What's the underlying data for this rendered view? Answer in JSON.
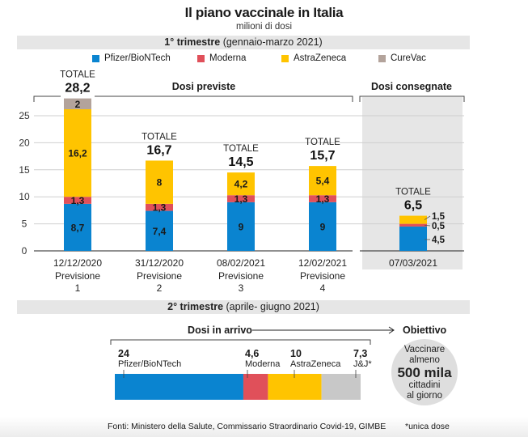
{
  "header": {
    "title": "Il piano vaccinale in Italia",
    "subtitle": "milioni di dosi"
  },
  "q1_band": {
    "bold": "1° trimestre",
    "rest": " (gennaio-marzo 2021)"
  },
  "q2_band": {
    "bold": "2° trimestre",
    "rest": " (aprile- giugno 2021)"
  },
  "legend": [
    {
      "label": "Pfizer/BioNTech",
      "color": "#0a84d0"
    },
    {
      "label": "Moderna",
      "color": "#e0505a"
    },
    {
      "label": "AstraZeneca",
      "color": "#ffc400"
    },
    {
      "label": "CureVac",
      "color": "#b3a39b"
    }
  ],
  "section_labels": {
    "previste": "Dosi previste",
    "consegnate": "Dosi consegnate",
    "in_arrivo": "Dosi in arrivo",
    "obiettivo": "Obiettivo"
  },
  "total_label": "TOTALE",
  "chart_data": [
    {
      "type": "bar",
      "stacked": true,
      "title": "1° trimestre (gennaio-marzo 2021)",
      "ylabel": "milioni di dosi",
      "ylim": [
        0,
        28
      ],
      "yticks": [
        0,
        5,
        10,
        15,
        20,
        25
      ],
      "grid": true,
      "legend": "top",
      "categories": [
        {
          "date": "12/12/2020",
          "label": "Previsione",
          "num": "1",
          "group": "Dosi previste",
          "total": "28,2"
        },
        {
          "date": "31/12/2020",
          "label": "Previsione",
          "num": "2",
          "group": "Dosi previste",
          "total": "16,7"
        },
        {
          "date": "08/02/2021",
          "label": "Previsione",
          "num": "3",
          "group": "Dosi previste",
          "total": "14,5"
        },
        {
          "date": "12/02/2021",
          "label": "Previsione",
          "num": "4",
          "group": "Dosi previste",
          "total": "15,7"
        },
        {
          "date": "07/03/2021",
          "label": "",
          "num": "",
          "group": "Dosi consegnate",
          "total": "6,5"
        }
      ],
      "series": [
        {
          "name": "Pfizer/BioNTech",
          "color": "#0a84d0",
          "values": [
            8.7,
            7.4,
            9,
            9,
            4.5
          ],
          "labels": [
            "8,7",
            "7,4",
            "9",
            "9",
            "4,5"
          ]
        },
        {
          "name": "Moderna",
          "color": "#e0505a",
          "values": [
            1.3,
            1.3,
            1.3,
            1.3,
            0.5
          ],
          "labels": [
            "1,3",
            "1,3",
            "1,3",
            "1,3",
            "0,5"
          ]
        },
        {
          "name": "AstraZeneca",
          "color": "#ffc400",
          "values": [
            16.2,
            8,
            4.2,
            5.4,
            1.5
          ],
          "labels": [
            "16,2",
            "8",
            "4,2",
            "5,4",
            "1,5"
          ]
        },
        {
          "name": "CureVac",
          "color": "#b3a39b",
          "values": [
            2,
            0,
            0,
            0,
            0
          ],
          "labels": [
            "2",
            "",
            "",
            "",
            ""
          ]
        }
      ]
    },
    {
      "type": "bar",
      "stacked": true,
      "orientation": "horizontal",
      "title": "2° trimestre (aprile- giugno 2021) — Dosi in arrivo",
      "series": [
        {
          "name": "Pfizer/BioNTech",
          "color": "#0a84d0",
          "value": 24,
          "label": "24"
        },
        {
          "name": "Moderna",
          "color": "#e0505a",
          "value": 4.6,
          "label": "4,6"
        },
        {
          "name": "AstraZeneca",
          "color": "#ffc400",
          "value": 10,
          "label": "10"
        },
        {
          "name": "J&J*",
          "color": "#c8c8c8",
          "value": 7.3,
          "label": "7,3"
        }
      ]
    }
  ],
  "objective": {
    "line1": "Vaccinare",
    "line2": "almeno",
    "big": "500 mila",
    "line3": "cittadini",
    "line4": "al giorno"
  },
  "footer": {
    "sources": "Fonti: Ministero della Salute, Commissario Straordinario Covid-19, GIMBE",
    "note": "*unica dose"
  }
}
